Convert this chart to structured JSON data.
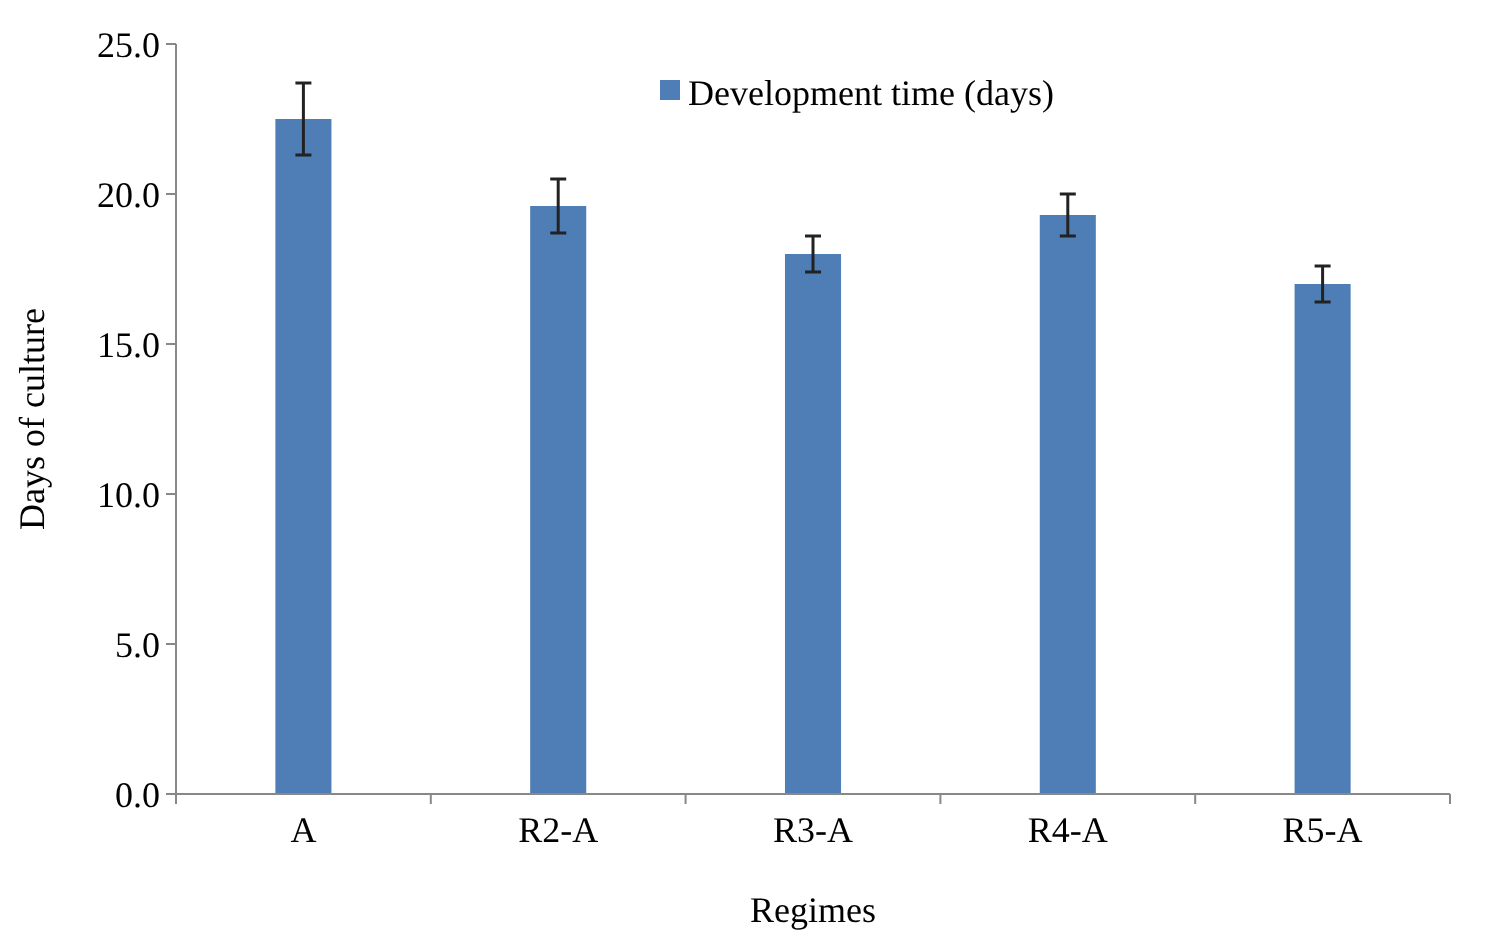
{
  "chart_data": {
    "type": "bar",
    "xlabel": "Regimes",
    "ylabel": "Days of culture",
    "categories": [
      "A",
      "R2-A",
      "R3-A",
      "R4-A",
      "R5-A"
    ],
    "series": [
      {
        "name": "Development time (days)",
        "color": "#4f7db5",
        "values": [
          22.5,
          19.6,
          18.0,
          19.3,
          17.0
        ],
        "errors": [
          1.2,
          0.9,
          0.6,
          0.7,
          0.6
        ]
      }
    ],
    "ylim": [
      0,
      25
    ],
    "yticks": [
      {
        "value": 0,
        "label": "0.0"
      },
      {
        "value": 5,
        "label": "5.0"
      },
      {
        "value": 10,
        "label": "10.0"
      },
      {
        "value": 15,
        "label": "15.0"
      },
      {
        "value": 20,
        "label": "20.0"
      },
      {
        "value": 25,
        "label": "25.0"
      }
    ],
    "legend": "top right"
  }
}
